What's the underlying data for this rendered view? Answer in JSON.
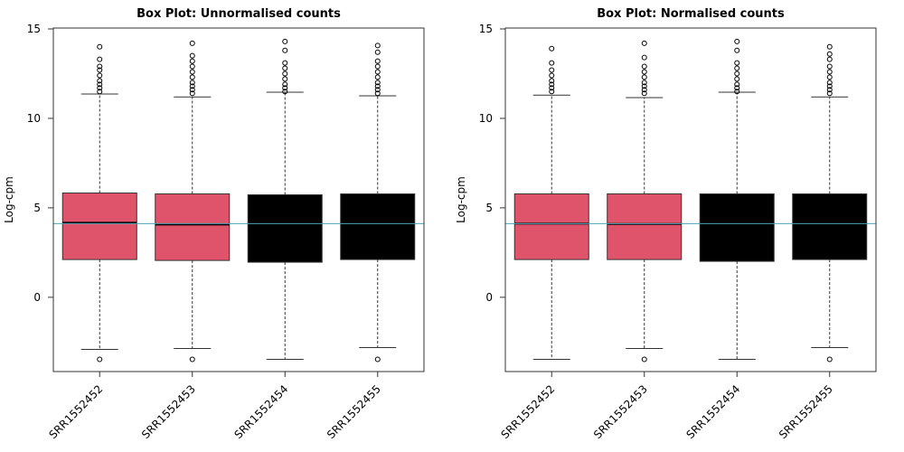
{
  "chart_data": [
    {
      "type": "box",
      "title": "Box Plot: Unnormalised counts",
      "y_label": "Log-cpm",
      "categories": [
        "SRR1552452",
        "SRR1552453",
        "SRR1552454",
        "SRR1552455"
      ],
      "colors": [
        "#df536b",
        "#df536b",
        "#000000",
        "#000000"
      ],
      "whisker_low": [
        -2.91,
        -2.86,
        -3.47,
        -2.81
      ],
      "q1": [
        2.11,
        2.06,
        1.96,
        2.11
      ],
      "median": [
        4.17,
        4.07,
        4.1,
        4.12
      ],
      "q3": [
        5.83,
        5.78,
        5.73,
        5.78
      ],
      "whisker_high": [
        11.36,
        11.2,
        11.46,
        11.26
      ],
      "outliers": [
        [
          -3.47,
          11.5,
          11.7,
          11.9,
          12.1,
          12.4,
          12.7,
          12.9,
          13.3,
          14.0
        ],
        [
          -3.47,
          11.4,
          11.6,
          11.8,
          12.0,
          12.3,
          12.6,
          12.9,
          13.2,
          13.5,
          14.2
        ],
        [
          11.5,
          11.7,
          11.9,
          12.2,
          12.5,
          12.8,
          13.1,
          13.8,
          14.3
        ],
        [
          -3.47,
          11.4,
          11.6,
          11.8,
          12.0,
          12.3,
          12.6,
          12.9,
          13.2,
          13.7,
          14.07
        ]
      ],
      "hline": 4.12,
      "hline_color": "#4fa3b5",
      "ylim": [
        -4.15,
        15.05
      ],
      "yticks": [
        0,
        5,
        10,
        15
      ]
    },
    {
      "type": "box",
      "title": "Box Plot: Normalised counts",
      "y_label": "Log-cpm",
      "categories": [
        "SRR1552452",
        "SRR1552453",
        "SRR1552454",
        "SRR1552455"
      ],
      "colors": [
        "#df536b",
        "#df536b",
        "#000000",
        "#000000"
      ],
      "whisker_low": [
        -3.47,
        -2.86,
        -3.47,
        -2.81
      ],
      "q1": [
        2.11,
        2.11,
        2.01,
        2.11
      ],
      "median": [
        4.12,
        4.1,
        4.12,
        4.12
      ],
      "q3": [
        5.78,
        5.78,
        5.78,
        5.78
      ],
      "whisker_high": [
        11.3,
        11.16,
        11.46,
        11.2
      ],
      "outliers": [
        [
          11.5,
          11.7,
          11.9,
          12.1,
          12.4,
          12.7,
          13.1,
          13.9
        ],
        [
          -3.47,
          11.4,
          11.6,
          11.8,
          12.0,
          12.3,
          12.6,
          12.9,
          13.4,
          14.2
        ],
        [
          11.5,
          11.7,
          11.9,
          12.2,
          12.5,
          12.8,
          13.1,
          13.8,
          14.3
        ],
        [
          -3.47,
          11.4,
          11.6,
          11.8,
          12.0,
          12.3,
          12.6,
          12.9,
          13.3,
          13.6,
          14.0
        ]
      ],
      "hline": 4.12,
      "hline_color": "#4fa3b5",
      "ylim": [
        -4.15,
        15.05
      ],
      "yticks": [
        0,
        5,
        10,
        15
      ]
    }
  ]
}
